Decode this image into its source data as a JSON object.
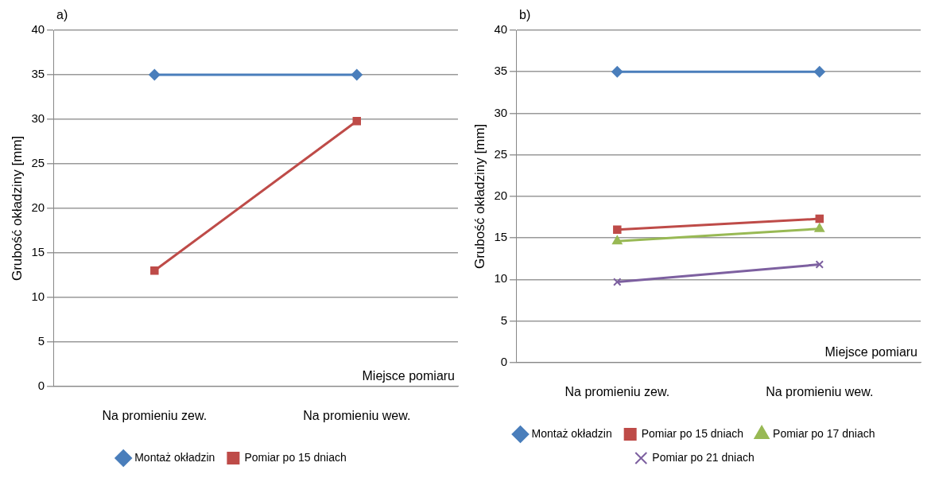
{
  "chart_data": [
    {
      "type": "line",
      "title": "a)",
      "xlabel": "Miejsce pomiaru",
      "ylabel": "Grubość okładziny [mm]",
      "categories": [
        "Na promieniu zew.",
        "Na promieniu wew."
      ],
      "series": [
        {
          "name": "Montaż okładzin",
          "color": "#4a7ebb",
          "marker": "diamond",
          "values": [
            35,
            35
          ]
        },
        {
          "name": "Pomiar po 15 dniach",
          "color": "#be4b48",
          "marker": "square",
          "values": [
            13,
            29.8
          ]
        }
      ],
      "ylim": [
        0,
        40
      ],
      "yticks": [
        0,
        5,
        10,
        15,
        20,
        25,
        30,
        35,
        40
      ],
      "grid": "y",
      "legend": "bottom",
      "line_style": "solid"
    },
    {
      "type": "line",
      "title": "b)",
      "xlabel": "Miejsce pomiaru",
      "ylabel": "Grubość okładziny [mm]",
      "categories": [
        "Na promieniu zew.",
        "Na promieniu wew."
      ],
      "series": [
        {
          "name": "Montaż okładzin",
          "color": "#4a7ebb",
          "marker": "diamond",
          "values": [
            35,
            35
          ]
        },
        {
          "name": "Pomiar po 15 dniach",
          "color": "#be4b48",
          "marker": "square",
          "values": [
            16,
            17.3
          ]
        },
        {
          "name": "Pomiar po 17 dniach",
          "color": "#98b954",
          "marker": "triangle",
          "values": [
            14.6,
            16.1
          ]
        },
        {
          "name": "Pomiar po 21 dniach",
          "color": "#7d60a0",
          "marker": "cross",
          "values": [
            9.7,
            11.8
          ]
        }
      ],
      "ylim": [
        0,
        40
      ],
      "yticks": [
        0,
        5,
        10,
        15,
        20,
        25,
        30,
        35,
        40
      ],
      "grid": "y",
      "legend": "bottom",
      "line_style": "solid"
    }
  ]
}
